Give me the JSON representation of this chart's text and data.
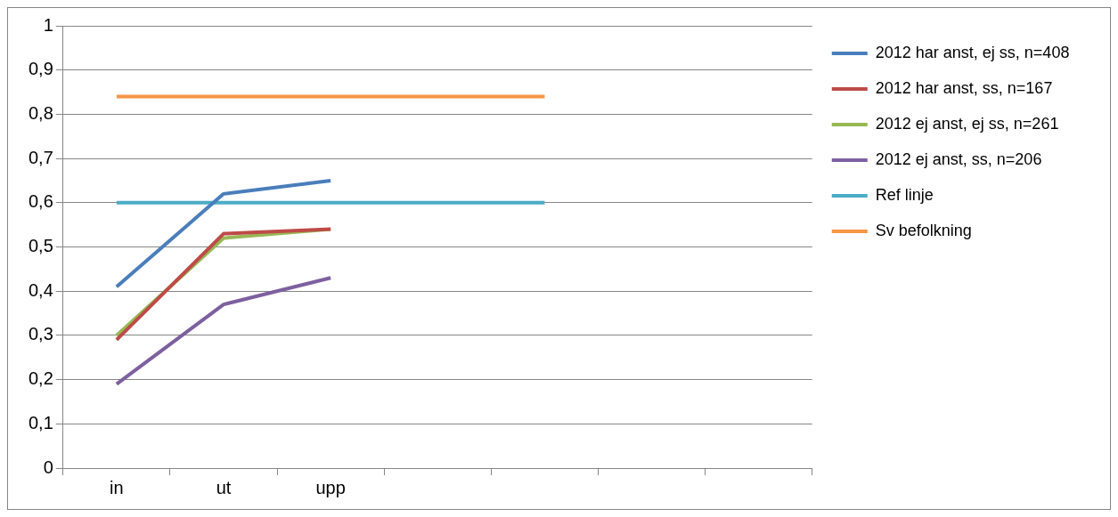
{
  "chart_data": {
    "type": "line",
    "categories": [
      "in",
      "ut",
      "upp",
      null,
      null,
      null,
      null
    ],
    "series": [
      {
        "name": "2012 har anst, ej ss, n=408",
        "color": "#4a7ebb",
        "values": [
          0.41,
          0.62,
          0.65,
          null,
          null,
          null,
          null
        ]
      },
      {
        "name": "2012 har anst, ss, n=167",
        "color": "#be4b48",
        "values": [
          0.29,
          0.53,
          0.54,
          null,
          null,
          null,
          null
        ]
      },
      {
        "name": "2012 ej anst, ej ss, n=261",
        "color": "#98b954",
        "values": [
          0.3,
          0.52,
          0.54,
          null,
          null,
          null,
          null
        ]
      },
      {
        "name": "2012 ej anst, ss, n=206",
        "color": "#7d60a0",
        "values": [
          0.19,
          0.37,
          0.43,
          null,
          null,
          null,
          null
        ]
      },
      {
        "name": "Ref linje",
        "color": "#4bacc6",
        "values": [
          0.6,
          0.6,
          0.6,
          0.6,
          0.6,
          null,
          null
        ]
      },
      {
        "name": "Sv befolkning",
        "color": "#f79646",
        "values": [
          0.84,
          0.84,
          0.84,
          0.84,
          0.84,
          null,
          null
        ]
      }
    ],
    "ylim": [
      0,
      1
    ],
    "yticks": [
      0,
      {
        "value": 0.1,
        "label": "0,1"
      },
      {
        "value": 0.2,
        "label": "0,2"
      },
      {
        "value": 0.3,
        "label": "0,3"
      },
      {
        "value": 0.4,
        "label": "0,4"
      },
      {
        "value": 0.5,
        "label": "0,5"
      },
      {
        "value": 0.6,
        "label": "0,6"
      },
      {
        "value": 0.7,
        "label": "0,7"
      },
      {
        "value": 0.8,
        "label": "0,8"
      },
      {
        "value": 0.9,
        "label": "0,9"
      },
      1
    ],
    "grid": "y",
    "legend": "right",
    "marker": "none",
    "line_style": "solid"
  }
}
